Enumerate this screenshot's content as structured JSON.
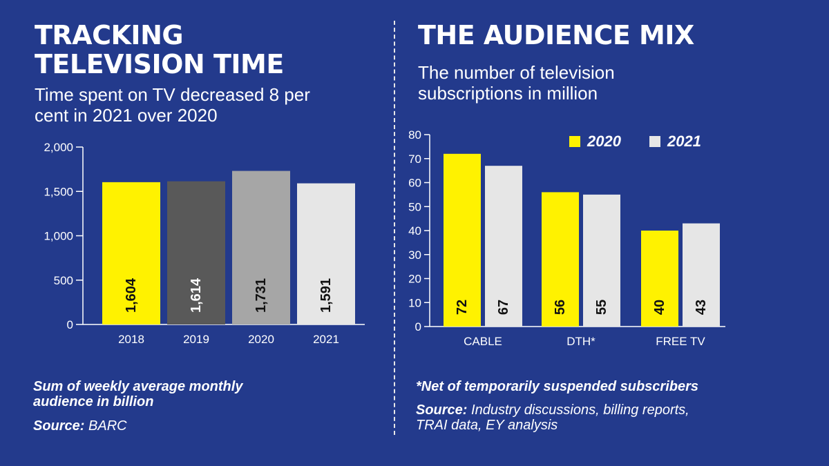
{
  "left": {
    "title_lines": [
      "TRACKING",
      "TELEVISION TIME"
    ],
    "subtitle_lines": [
      "Time spent on TV decreased 8 per",
      "cent in 2021 over 2020"
    ],
    "note_lines": [
      "Sum of weekly average monthly",
      "audience in billion"
    ],
    "source_label": "Source:",
    "source_text": "BARC"
  },
  "right": {
    "title": "THE AUDIENCE MIX",
    "subtitle_lines": [
      "The number of television",
      "subscriptions in million"
    ],
    "note": "*Net of temporarily suspended subscribers",
    "source_label": "Source:",
    "source_lines": [
      "Industry discussions, billing reports,",
      "TRAI data, EY analysis"
    ]
  },
  "colors": {
    "background": "#233a8c",
    "yellow": "#fff200",
    "dark_grey": "#595959",
    "mid_grey": "#a6a6a6",
    "light_grey": "#e6e6e6"
  },
  "chart_data": [
    {
      "type": "bar",
      "categories": [
        "2018",
        "2019",
        "2020",
        "2021"
      ],
      "values": [
        1604,
        1614,
        1731,
        1591
      ],
      "value_labels": [
        "1,604",
        "1,614",
        "1,731",
        "1,591"
      ],
      "bar_colors": [
        "#fff200",
        "#595959",
        "#a6a6a6",
        "#e6e6e6"
      ],
      "label_colors": [
        "#111111",
        "#ffffff",
        "#111111",
        "#111111"
      ],
      "yticks": [
        0,
        500,
        1000,
        1500,
        2000
      ],
      "ytick_labels": [
        "0",
        "500",
        "1,000",
        "1,500",
        "2,000"
      ],
      "ylim": [
        0,
        2000
      ],
      "grid": false,
      "legend": null
    },
    {
      "type": "bar",
      "categories": [
        "CABLE",
        "DTH*",
        "FREE TV"
      ],
      "series": [
        {
          "name": "2020",
          "values": [
            72,
            56,
            40
          ],
          "color": "#fff200"
        },
        {
          "name": "2021",
          "values": [
            67,
            55,
            43
          ],
          "color": "#e6e6e6"
        }
      ],
      "yticks": [
        0,
        10,
        20,
        30,
        40,
        50,
        60,
        70,
        80
      ],
      "ylim": [
        0,
        80
      ],
      "grid": false,
      "legend": "top-right"
    }
  ]
}
